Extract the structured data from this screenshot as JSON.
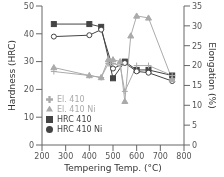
{
  "chart_data": {
    "type": "line",
    "xlabel": "Tempering Temp. (°C)",
    "ylabel": "Hardness (HRC)",
    "y2label": "Elongation (%)",
    "xlim": [
      200,
      800
    ],
    "xticks": [
      200,
      300,
      400,
      500,
      600,
      700,
      800
    ],
    "ylim": [
      0,
      50
    ],
    "yticks": [
      0,
      10,
      20,
      30,
      40,
      50
    ],
    "y2lim": [
      0,
      35
    ],
    "y2ticks": [
      0,
      5,
      10,
      15,
      20,
      25,
      30,
      35
    ],
    "grid": false,
    "legend": "lower left",
    "series": [
      {
        "name": "HRC 410",
        "color": "#444444",
        "marker": "square",
        "line_style": "solid",
        "x": [
          250,
          400,
          450,
          500,
          550,
          600,
          650,
          750
        ],
        "values": [
          43.5,
          43.5,
          42.5,
          24.0,
          30.0,
          27.0,
          27.0,
          25.0
        ]
      },
      {
        "name": "HRC 410 Ni",
        "color": "#444444",
        "marker": "circle-open",
        "line_style": "solid",
        "x": [
          250,
          400,
          450,
          500,
          550,
          600,
          650,
          750
        ],
        "values": [
          39.0,
          39.5,
          41.5,
          27.5,
          29.5,
          26.5,
          26.0,
          23.0
        ]
      },
      {
        "name": "El. 410",
        "color": "#aaaaaa",
        "marker": "plus",
        "line_style": "solid",
        "axis": "y2",
        "x": [
          250,
          400,
          450,
          480,
          500,
          530,
          550,
          600,
          650,
          750
        ],
        "values": [
          18.5,
          17.5,
          17.0,
          20.5,
          20.5,
          20.0,
          13.5,
          20.0,
          20.0,
          17.5
        ]
      },
      {
        "name": "El. 410 Ni",
        "color": "#aaaaaa",
        "marker": "triangle",
        "line_style": "solid",
        "axis": "y2",
        "x": [
          250,
          400,
          450,
          480,
          500,
          530,
          550,
          575,
          600,
          650,
          750
        ],
        "values": [
          19.5,
          17.5,
          17.0,
          21.5,
          21.5,
          21.0,
          11.0,
          27.5,
          32.5,
          32.0,
          16.5
        ]
      }
    ]
  }
}
